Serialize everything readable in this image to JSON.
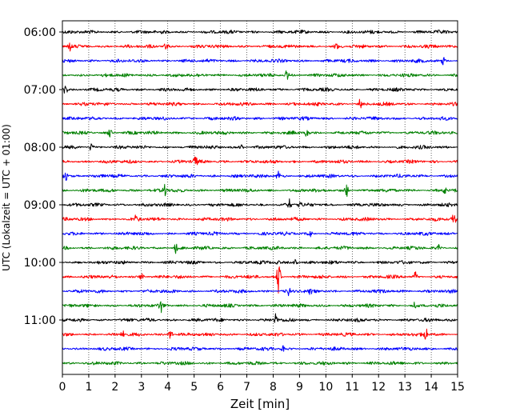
{
  "chart_data": {
    "type": "line",
    "xlabel": "Zeit  [min]",
    "ylabel": "UTC (Lokalzeit = UTC + 01:00)",
    "xlim": [
      0,
      15
    ],
    "x_ticks": [
      0,
      1,
      2,
      3,
      4,
      5,
      6,
      7,
      8,
      9,
      10,
      11,
      12,
      13,
      14,
      15
    ],
    "y_tick_labels": [
      "06:00",
      "07:00",
      "08:00",
      "09:00",
      "10:00",
      "11:00"
    ],
    "y_tick_trace_index": [
      0,
      4,
      8,
      12,
      16,
      20
    ],
    "grid": "vertical dotted lines at each minute",
    "trace_interval_minutes": 15,
    "colors": [
      "#000000",
      "#ff0000",
      "#0000ff",
      "#008000"
    ],
    "series": [
      {
        "start": "06:00",
        "color": "#000000",
        "spikes": []
      },
      {
        "start": "06:15",
        "color": "#ff0000",
        "spikes": [
          [
            0.3,
            6
          ],
          [
            3.95,
            8
          ],
          [
            10.4,
            5
          ]
        ]
      },
      {
        "start": "06:30",
        "color": "#0000ff",
        "spikes": [
          [
            14.45,
            7
          ]
        ]
      },
      {
        "start": "06:45",
        "color": "#008000",
        "spikes": [
          [
            8.5,
            9
          ]
        ]
      },
      {
        "start": "07:00",
        "color": "#000000",
        "spikes": [
          [
            0.1,
            7
          ]
        ]
      },
      {
        "start": "07:15",
        "color": "#ff0000",
        "spikes": [
          [
            11.3,
            6
          ]
        ]
      },
      {
        "start": "07:30",
        "color": "#0000ff",
        "spikes": []
      },
      {
        "start": "07:45",
        "color": "#008000",
        "spikes": [
          [
            9.3,
            8
          ],
          [
            1.8,
            5
          ]
        ]
      },
      {
        "start": "08:00",
        "color": "#000000",
        "spikes": [
          [
            1.1,
            6
          ],
          [
            6.8,
            5
          ]
        ]
      },
      {
        "start": "08:15",
        "color": "#ff0000",
        "spikes": [
          [
            5.05,
            9
          ]
        ]
      },
      {
        "start": "08:30",
        "color": "#0000ff",
        "spikes": [
          [
            0.1,
            10
          ],
          [
            8.2,
            6
          ]
        ]
      },
      {
        "start": "08:45",
        "color": "#008000",
        "spikes": [
          [
            3.9,
            8
          ],
          [
            10.8,
            9
          ],
          [
            14.5,
            7
          ]
        ]
      },
      {
        "start": "09:00",
        "color": "#000000",
        "spikes": [
          [
            8.6,
            9
          ],
          [
            9.0,
            6
          ]
        ]
      },
      {
        "start": "09:15",
        "color": "#ff0000",
        "spikes": [
          [
            2.8,
            7
          ],
          [
            14.85,
            10
          ]
        ]
      },
      {
        "start": "09:30",
        "color": "#0000ff",
        "spikes": [
          [
            9.4,
            6
          ]
        ]
      },
      {
        "start": "09:45",
        "color": "#008000",
        "spikes": [
          [
            4.3,
            8
          ],
          [
            14.3,
            6
          ]
        ]
      },
      {
        "start": "10:00",
        "color": "#000000",
        "spikes": [
          [
            8.85,
            8
          ],
          [
            8.2,
            5
          ]
        ]
      },
      {
        "start": "10:15",
        "color": "#ff0000",
        "spikes": [
          [
            8.2,
            22
          ],
          [
            3.0,
            7
          ],
          [
            13.4,
            7
          ]
        ]
      },
      {
        "start": "10:30",
        "color": "#0000ff",
        "spikes": [
          [
            8.6,
            6
          ],
          [
            9.4,
            5
          ]
        ]
      },
      {
        "start": "10:45",
        "color": "#008000",
        "spikes": [
          [
            3.75,
            8
          ],
          [
            13.4,
            6
          ]
        ]
      },
      {
        "start": "11:00",
        "color": "#000000",
        "spikes": [
          [
            8.1,
            8
          ]
        ]
      },
      {
        "start": "11:15",
        "color": "#ff0000",
        "spikes": [
          [
            4.1,
            7
          ],
          [
            13.8,
            9
          ],
          [
            2.3,
            4
          ]
        ]
      },
      {
        "start": "11:30",
        "color": "#0000ff",
        "spikes": [
          [
            8.4,
            6
          ]
        ]
      },
      {
        "start": "11:45",
        "color": "#008000",
        "spikes": []
      }
    ]
  }
}
